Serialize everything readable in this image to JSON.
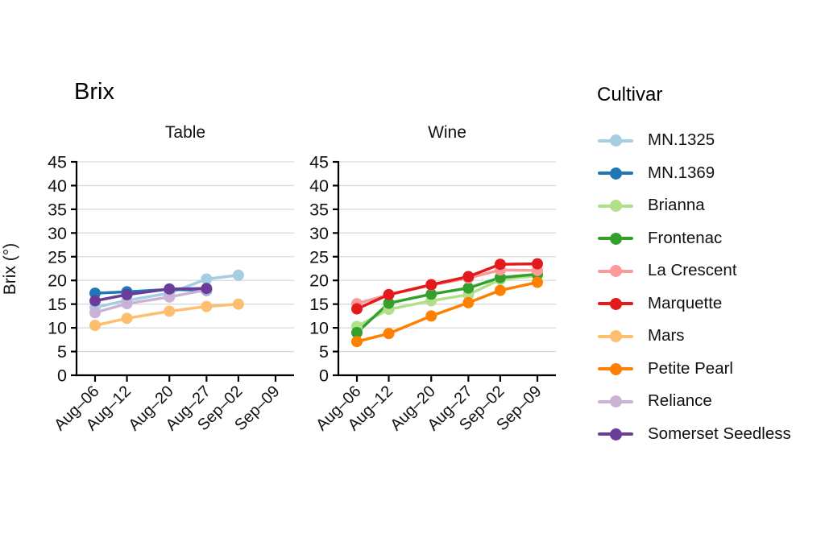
{
  "title": "Brix",
  "legend": {
    "title": "Cultivar",
    "items": [
      {
        "label": "MN.1325",
        "color": "#A6CEE3"
      },
      {
        "label": "MN.1369",
        "color": "#1F78B4"
      },
      {
        "label": "Brianna",
        "color": "#B2DF8A"
      },
      {
        "label": "Frontenac",
        "color": "#33A02C"
      },
      {
        "label": "La Crescent",
        "color": "#FB9A99"
      },
      {
        "label": "Marquette",
        "color": "#E31A1C"
      },
      {
        "label": "Mars",
        "color": "#FDBF6F"
      },
      {
        "label": "Petite Pearl",
        "color": "#FF7F00"
      },
      {
        "label": "Reliance",
        "color": "#CAB2D6"
      },
      {
        "label": "Somerset Seedless",
        "color": "#6A3D9A"
      }
    ]
  },
  "chart_data": {
    "type": "line",
    "title": "Brix",
    "ylabel": "Brix (°)",
    "ylim": [
      0,
      45
    ],
    "yticks": [
      0,
      5,
      10,
      15,
      20,
      25,
      30,
      35,
      40,
      45
    ],
    "grid": "horizontal-major",
    "legend_position": "right",
    "legend_title": "Cultivar",
    "x_tick_labels": [
      "Aug–06",
      "Aug–12",
      "Aug–20",
      "Aug–27",
      "Sep–02",
      "Sep–09"
    ],
    "x_tick_days": [
      0,
      6,
      14,
      21,
      27,
      34
    ],
    "facets": [
      {
        "label": "Table",
        "series": [
          {
            "name": "MN.1325",
            "days": [
              0,
              6,
              14,
              21,
              27
            ],
            "values": [
              14.3,
              15.8,
              17.3,
              20.3,
              21.1
            ]
          },
          {
            "name": "MN.1369",
            "days": [
              0,
              6,
              14,
              21
            ],
            "values": [
              17.3,
              17.6,
              18.1,
              17.9
            ]
          },
          {
            "name": "Mars",
            "days": [
              0,
              6,
              14,
              21,
              27
            ],
            "values": [
              10.5,
              12.0,
              13.5,
              14.5,
              15.0
            ]
          },
          {
            "name": "Reliance",
            "days": [
              0,
              6,
              14,
              21
            ],
            "values": [
              13.2,
              15.1,
              16.5,
              18.0
            ]
          },
          {
            "name": "Somerset Seedless",
            "days": [
              0,
              6,
              14,
              21
            ],
            "values": [
              15.7,
              17.0,
              18.2,
              18.3
            ]
          }
        ]
      },
      {
        "label": "Wine",
        "series": [
          {
            "name": "Brianna",
            "days": [
              0,
              6,
              14,
              21,
              27,
              34
            ],
            "values": [
              10.3,
              13.9,
              15.7,
              17.0,
              20.2,
              21.0
            ]
          },
          {
            "name": "Frontenac",
            "days": [
              0,
              6,
              14,
              21,
              27,
              34
            ],
            "values": [
              9.0,
              15.2,
              17.1,
              18.4,
              20.6,
              21.3
            ]
          },
          {
            "name": "La Crescent",
            "days": [
              0,
              6,
              14,
              21,
              27,
              34
            ],
            "values": [
              15.1,
              17.0,
              19.0,
              20.5,
              22.2,
              22.1
            ]
          },
          {
            "name": "Marquette",
            "days": [
              0,
              6,
              14,
              21,
              27,
              34
            ],
            "values": [
              14.0,
              17.0,
              19.1,
              20.8,
              23.4,
              23.5
            ]
          },
          {
            "name": "Petite Pearl",
            "days": [
              0,
              6,
              14,
              21,
              27,
              34
            ],
            "values": [
              7.1,
              8.8,
              12.5,
              15.3,
              17.9,
              19.6
            ]
          }
        ]
      }
    ],
    "colors": {
      "MN.1325": "#A6CEE3",
      "MN.1369": "#1F78B4",
      "Brianna": "#B2DF8A",
      "Frontenac": "#33A02C",
      "La Crescent": "#FB9A99",
      "Marquette": "#E31A1C",
      "Mars": "#FDBF6F",
      "Petite Pearl": "#FF7F00",
      "Reliance": "#CAB2D6",
      "Somerset Seedless": "#6A3D9A"
    },
    "style": {
      "grid_color": "#d9d9d9",
      "axis_color": "#000000",
      "point_radius": 7,
      "line_width": 3.5
    }
  }
}
